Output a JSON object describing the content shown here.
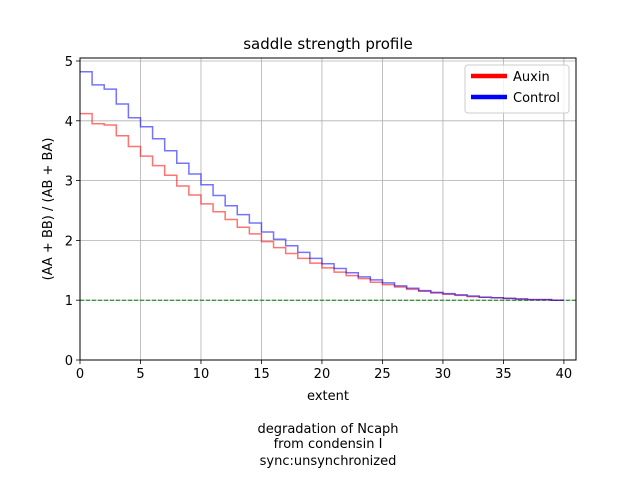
{
  "chart_data": {
    "type": "line",
    "title": "saddle strength profile",
    "xlabel": "extent",
    "ylabel": "(AA + BB) / (AB + BA)",
    "xlim": [
      0,
      41
    ],
    "ylim": [
      0,
      5.05
    ],
    "xticks": [
      "0",
      "5",
      "10",
      "15",
      "20",
      "25",
      "30",
      "35",
      "40"
    ],
    "yticks": [
      "0",
      "1",
      "2",
      "3",
      "4",
      "5"
    ],
    "grid": true,
    "legend_position": "top-right",
    "reference_line": {
      "y": 1,
      "color": "#008000",
      "style": "dashed"
    },
    "series": [
      {
        "name": "Auxin",
        "color": "#ff0000",
        "x": [
          0,
          1,
          2,
          3,
          4,
          5,
          6,
          7,
          8,
          9,
          10,
          11,
          12,
          13,
          14,
          15,
          16,
          17,
          18,
          19,
          20,
          21,
          22,
          23,
          24,
          25,
          26,
          27,
          28,
          29,
          30,
          31,
          32,
          33,
          34,
          35,
          36,
          37,
          38,
          39
        ],
        "values": [
          4.12,
          3.95,
          3.93,
          3.75,
          3.57,
          3.41,
          3.25,
          3.09,
          2.91,
          2.76,
          2.61,
          2.48,
          2.35,
          2.22,
          2.11,
          1.98,
          1.88,
          1.78,
          1.7,
          1.62,
          1.54,
          1.47,
          1.41,
          1.36,
          1.3,
          1.26,
          1.22,
          1.18,
          1.15,
          1.12,
          1.1,
          1.08,
          1.06,
          1.05,
          1.04,
          1.03,
          1.02,
          1.01,
          1.01,
          1.0
        ]
      },
      {
        "name": "Control",
        "color": "#0000ff",
        "x": [
          0,
          1,
          2,
          3,
          4,
          5,
          6,
          7,
          8,
          9,
          10,
          11,
          12,
          13,
          14,
          15,
          16,
          17,
          18,
          19,
          20,
          21,
          22,
          23,
          24,
          25,
          26,
          27,
          28,
          29,
          30,
          31,
          32,
          33,
          34,
          35,
          36,
          37,
          38,
          39
        ],
        "values": [
          4.82,
          4.6,
          4.53,
          4.28,
          4.05,
          3.9,
          3.7,
          3.5,
          3.29,
          3.11,
          2.93,
          2.75,
          2.58,
          2.43,
          2.29,
          2.14,
          2.02,
          1.91,
          1.8,
          1.7,
          1.61,
          1.53,
          1.46,
          1.39,
          1.34,
          1.29,
          1.24,
          1.2,
          1.16,
          1.13,
          1.11,
          1.09,
          1.07,
          1.05,
          1.04,
          1.03,
          1.02,
          1.01,
          1.01,
          1.0
        ]
      }
    ],
    "caption": [
      "degradation of Ncaph",
      "from condensin I",
      "sync:unsynchronized"
    ]
  }
}
